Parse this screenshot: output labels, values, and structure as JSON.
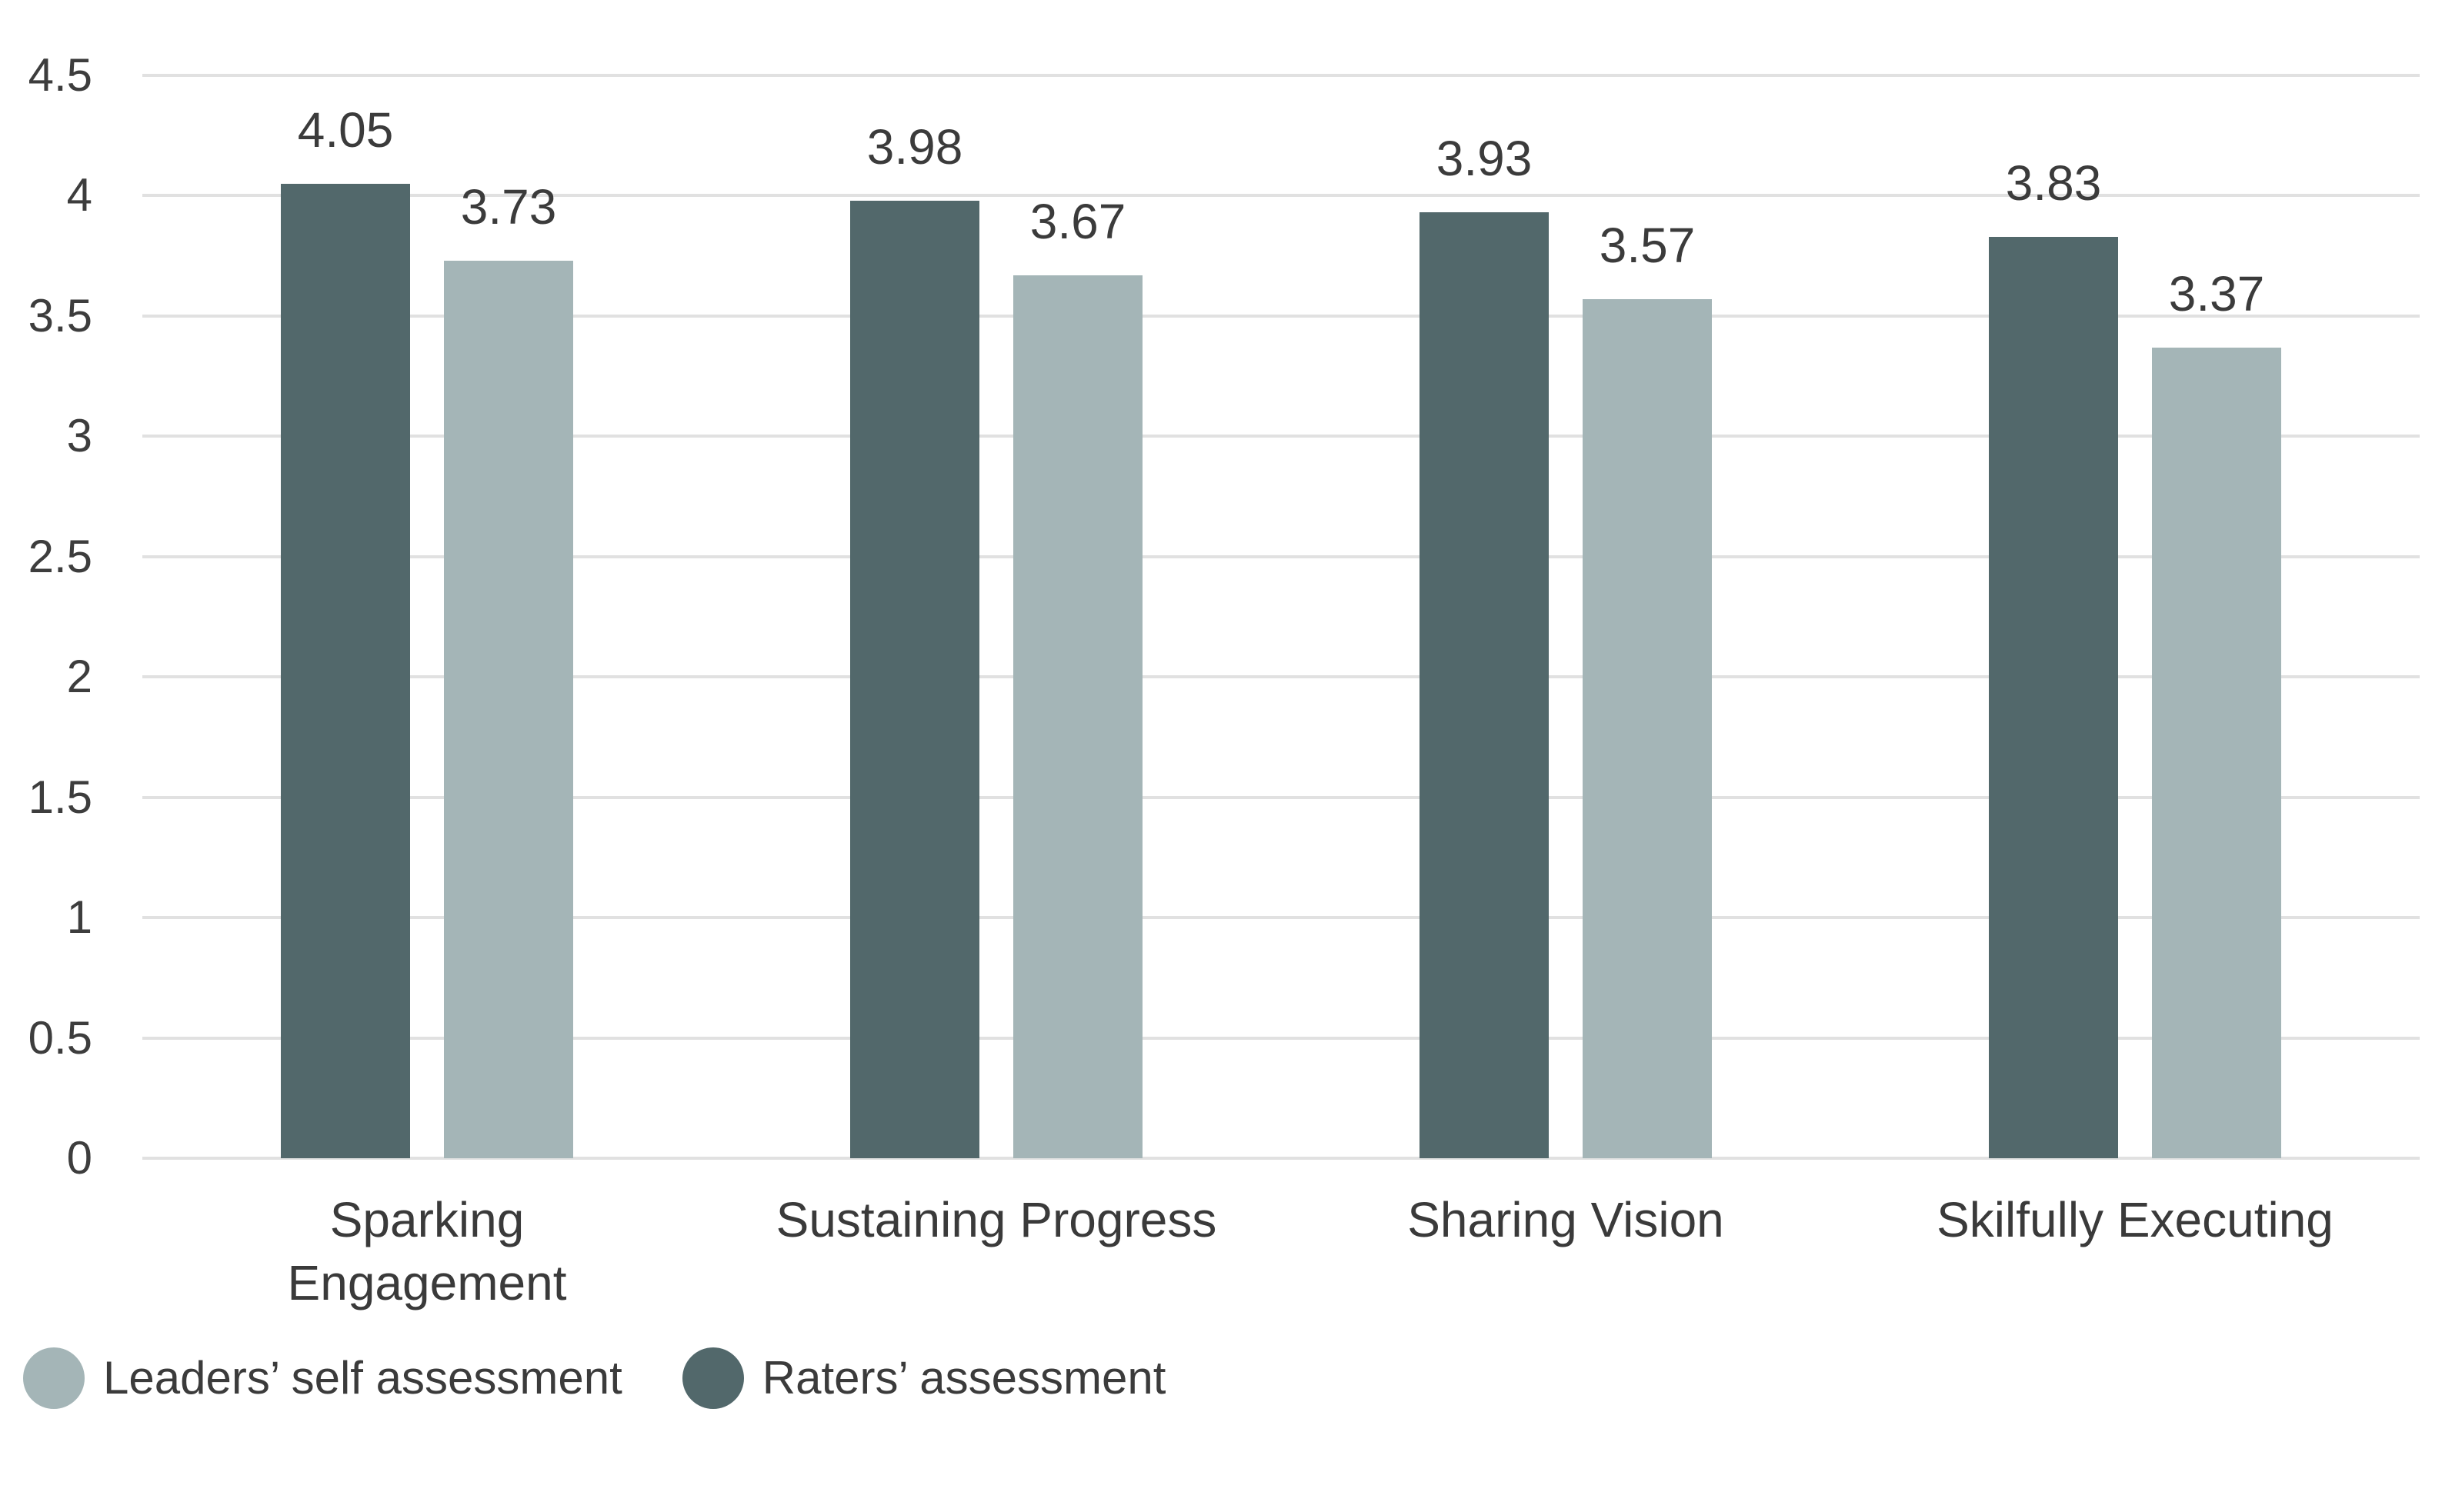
{
  "chart_data": {
    "type": "bar",
    "title": "",
    "xlabel": "",
    "ylabel": "",
    "grid": true,
    "legend_position": "bottom-left",
    "background_color": "#ffffff",
    "gridline_color": "#e1e1e1",
    "text_color": "#3d3d3d",
    "y_axis": {
      "min": 0,
      "max": 4.5,
      "step": 0.5,
      "ticks": [
        "4.5",
        "4",
        "3.5",
        "3",
        "2.5",
        "2",
        "1.5",
        "1",
        "0.5",
        "0"
      ]
    },
    "categories": [
      {
        "label": "Sparking Engagement",
        "lines": [
          "Sparking",
          "Engagement"
        ]
      },
      {
        "label": "Sustaining Progress",
        "lines": [
          "Sustaining Progress"
        ]
      },
      {
        "label": "Sharing Vision",
        "lines": [
          "Sharing Vision"
        ]
      },
      {
        "label": "Skilfully Executing",
        "lines": [
          "Skilfully Executing"
        ]
      }
    ],
    "series": [
      {
        "name": "Raters’ assessment",
        "color": "#52686b",
        "values": [
          4.05,
          3.98,
          3.93,
          3.83
        ],
        "value_labels": [
          "4.05",
          "3.98",
          "3.93",
          "3.83"
        ]
      },
      {
        "name": "Leaders’ self assessment",
        "color": "#a4b5b7",
        "values": [
          3.73,
          3.67,
          3.57,
          3.37
        ],
        "value_labels": [
          "3.73",
          "3.67",
          "3.57",
          "3.37"
        ]
      }
    ],
    "legend": [
      {
        "label": "Leaders’ self assessment",
        "color": "#a4b5b7"
      },
      {
        "label": "Raters’ assessment",
        "color": "#52686b"
      }
    ]
  }
}
